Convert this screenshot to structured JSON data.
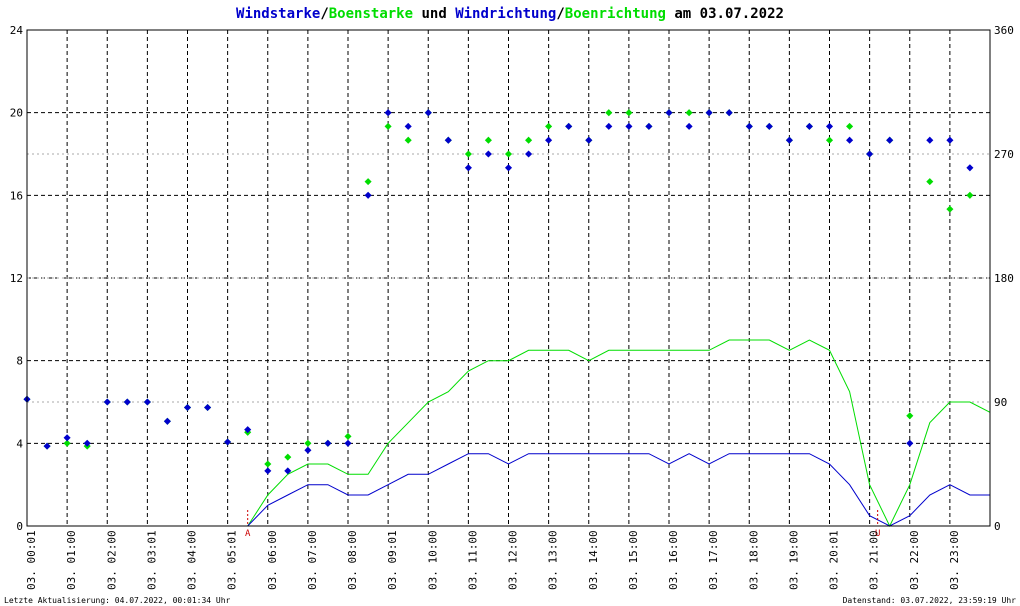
{
  "title": {
    "part1": "Windstarke",
    "sep1": "/",
    "part2": "Boenstarke",
    "mid": " und ",
    "part3": "Windrichtung",
    "sep2": "/",
    "part4": "Boenrichtung",
    "tail": " am 03.07.2022"
  },
  "footer": {
    "left": "Letzte Aktualisierung: 04.07.2022, 00:01:34 Uhr",
    "right": "Datenstand: 03.07.2022, 23:59:19 Uhr"
  },
  "colors": {
    "wind": "#0000cc",
    "gust": "#00dd00",
    "marker": "#cc0000",
    "grid": "#000000"
  },
  "chart_data": {
    "type": "line",
    "x_range_hours": [
      0,
      24
    ],
    "x_tick_labels": [
      "03. 00:01",
      "03. 01:00",
      "03. 02:00",
      "03. 03:01",
      "03. 04:00",
      "03. 05:01",
      "03. 06:00",
      "03. 07:00",
      "03. 08:00",
      "03. 09:01",
      "03. 10:00",
      "03. 11:00",
      "03. 12:00",
      "03. 13:00",
      "03. 14:00",
      "03. 15:00",
      "03. 16:00",
      "03. 17:00",
      "03. 18:00",
      "03. 19:00",
      "03. 20:01",
      "03. 21:00",
      "03. 22:00",
      "03. 23:00"
    ],
    "y_left_ticks": [
      "0",
      "4",
      "8",
      "12",
      "16",
      "20",
      "24"
    ],
    "y_left_range": [
      0,
      24
    ],
    "y_right_ticks": [
      "0",
      "90",
      "180",
      "270",
      "360"
    ],
    "y_right_range": [
      0,
      360
    ],
    "grid": true,
    "markers": [
      {
        "label": "A",
        "x_hour": 5.5
      },
      {
        "label": "U",
        "x_hour": 21.2
      }
    ],
    "series": [
      {
        "name": "Windstarke",
        "axis": "left",
        "style": "line",
        "x": [
          0,
          0.9,
          1.0,
          1.5,
          2.0,
          2.5,
          3.0,
          3.5,
          4.0,
          4.5,
          5.0,
          5.5,
          6.0,
          6.5,
          7.0,
          7.5,
          8.0,
          8.5,
          9.0,
          9.5,
          10.0,
          10.5,
          11.0,
          11.5,
          12.0,
          12.5,
          13.0,
          13.5,
          14.0,
          14.5,
          15.0,
          15.5,
          16.0,
          16.5,
          17.0,
          17.5,
          18.0,
          18.5,
          19.0,
          19.5,
          20.0,
          20.5,
          21.0,
          21.5,
          22.0,
          22.5,
          23.0,
          23.5,
          24.0
        ],
        "y": [
          0,
          0,
          0,
          0,
          0,
          0,
          0,
          0,
          0,
          0,
          0,
          0,
          1.0,
          1.5,
          2.0,
          2.0,
          1.5,
          1.5,
          2.0,
          2.5,
          2.5,
          3.0,
          3.5,
          3.5,
          3.0,
          3.5,
          3.5,
          3.5,
          3.5,
          3.5,
          3.5,
          3.5,
          3.0,
          3.5,
          3.0,
          3.5,
          3.5,
          3.5,
          3.5,
          3.5,
          3.0,
          2.0,
          0.5,
          0,
          0.5,
          1.5,
          2.0,
          1.5,
          1.5
        ]
      },
      {
        "name": "Boenstarke",
        "axis": "left",
        "style": "line",
        "x": [
          0,
          0.9,
          1.0,
          1.5,
          2.0,
          2.5,
          3.0,
          3.5,
          4.0,
          4.5,
          5.0,
          5.5,
          6.0,
          6.5,
          7.0,
          7.5,
          8.0,
          8.5,
          9.0,
          9.5,
          10.0,
          10.5,
          11.0,
          11.5,
          12.0,
          12.5,
          13.0,
          13.5,
          14.0,
          14.5,
          15.0,
          15.5,
          16.0,
          16.5,
          17.0,
          17.5,
          18.0,
          18.5,
          19.0,
          19.5,
          20.0,
          20.5,
          21.0,
          21.5,
          22.0,
          22.5,
          23.0,
          23.5,
          24.0
        ],
        "y": [
          0,
          0,
          0,
          0,
          0,
          0,
          0,
          0,
          0,
          0,
          0,
          0,
          1.5,
          2.5,
          3.0,
          3.0,
          2.5,
          2.5,
          4.0,
          5.0,
          6.0,
          6.5,
          7.5,
          8.0,
          8.0,
          8.5,
          8.5,
          8.5,
          8.0,
          8.5,
          8.5,
          8.5,
          8.5,
          8.5,
          8.5,
          9.0,
          9.0,
          9.0,
          8.5,
          9.0,
          8.5,
          6.5,
          2.0,
          0,
          2.0,
          5.0,
          6.0,
          6.0,
          5.5
        ]
      },
      {
        "name": "Windrichtung",
        "axis": "right",
        "style": "points",
        "x": [
          0,
          0.5,
          1.0,
          1.5,
          2.0,
          2.5,
          3.0,
          3.5,
          4.0,
          4.5,
          5.0,
          5.5,
          6.0,
          6.5,
          7.0,
          7.5,
          8.0,
          8.5,
          9.0,
          9.5,
          10.0,
          10.5,
          11.0,
          11.5,
          12.0,
          12.5,
          13.0,
          13.5,
          14.0,
          14.5,
          15.0,
          15.5,
          16.0,
          16.5,
          17.0,
          17.5,
          18.0,
          18.5,
          19.0,
          19.5,
          20.0,
          20.5,
          21.0,
          21.5,
          22.0,
          22.5,
          23.0,
          23.5
        ],
        "y": [
          92,
          58,
          64,
          60,
          90,
          90,
          90,
          76,
          86,
          86,
          61,
          70,
          40,
          40,
          55,
          60,
          60,
          240,
          300,
          290,
          300,
          280,
          260,
          270,
          260,
          270,
          280,
          290,
          280,
          290,
          290,
          290,
          300,
          290,
          300,
          300,
          290,
          290,
          280,
          290,
          290,
          280,
          270,
          280,
          60,
          280,
          280,
          260
        ]
      },
      {
        "name": "Boenrichtung",
        "axis": "right",
        "style": "points",
        "x": [
          0,
          0.5,
          1.0,
          1.5,
          2.0,
          2.5,
          3.0,
          3.5,
          4.0,
          4.5,
          5.0,
          5.5,
          6.0,
          6.5,
          7.0,
          7.5,
          8.0,
          8.5,
          9.0,
          9.5,
          10.0,
          10.5,
          11.0,
          11.5,
          12.0,
          12.5,
          13.0,
          13.5,
          14.0,
          14.5,
          15.0,
          15.5,
          16.0,
          16.5,
          17.0,
          17.5,
          18.0,
          18.5,
          19.0,
          19.5,
          20.0,
          20.5,
          21.0,
          21.5,
          22.0,
          22.5,
          23.0,
          23.5
        ],
        "y": [
          92,
          58,
          60,
          58,
          90,
          90,
          90,
          76,
          86,
          86,
          61,
          68,
          45,
          50,
          60,
          60,
          65,
          250,
          290,
          280,
          300,
          280,
          270,
          280,
          270,
          280,
          290,
          290,
          280,
          300,
          300,
          290,
          300,
          300,
          300,
          300,
          290,
          290,
          280,
          290,
          280,
          290,
          270,
          280,
          80,
          250,
          230,
          240
        ]
      }
    ]
  }
}
